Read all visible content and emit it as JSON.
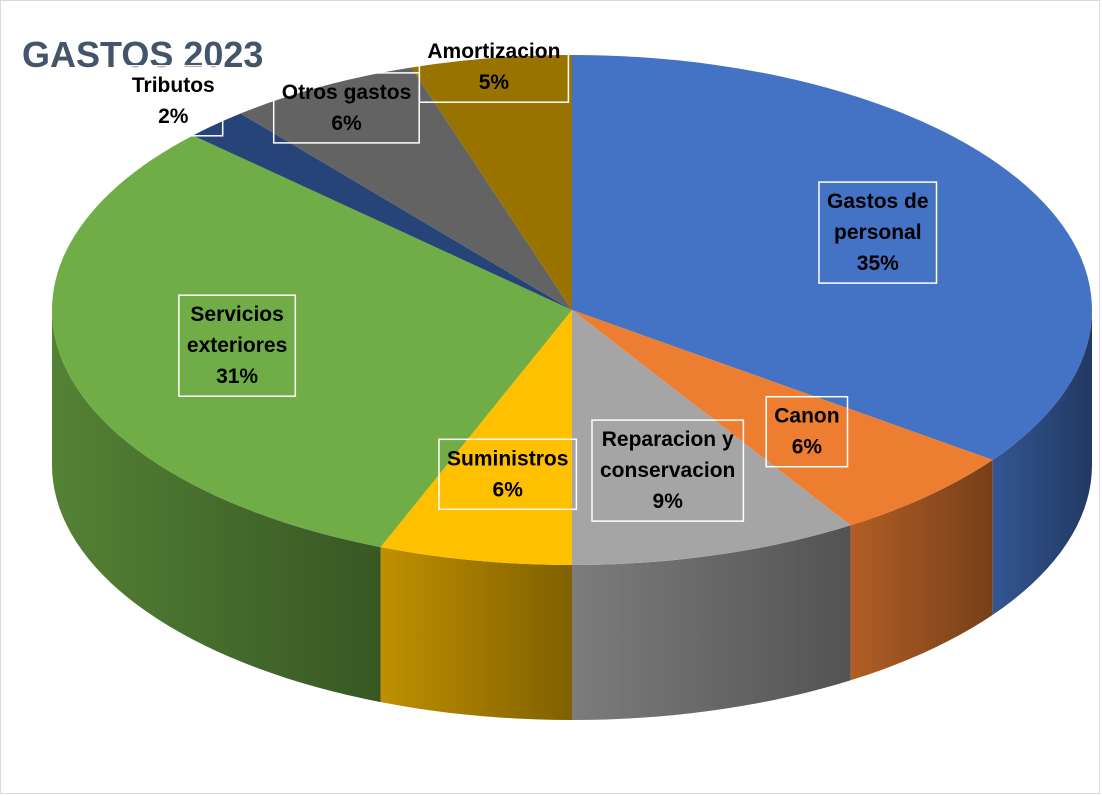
{
  "chart_data": {
    "type": "pie",
    "title": "GASTOS 2023",
    "slices": [
      {
        "name": "Gastos de personal",
        "value": 35,
        "label_lines": [
          "Gastos de",
          "personal",
          "35%"
        ],
        "color": "#4472c4"
      },
      {
        "name": "Canon",
        "value": 6,
        "label_lines": [
          "Canon",
          "6%"
        ],
        "color": "#ed7d31"
      },
      {
        "name": "Reparacion y conservacion",
        "value": 9,
        "label_lines": [
          "Reparacion y",
          "conservacion",
          "9%"
        ],
        "color": "#a5a5a5"
      },
      {
        "name": "Suministros",
        "value": 6,
        "label_lines": [
          "Suministros",
          "6%"
        ],
        "color": "#ffc000"
      },
      {
        "name": "Servicios exteriores",
        "value": 31,
        "label_lines": [
          "Servicios",
          "exteriores",
          "31%"
        ],
        "color": "#70ad47"
      },
      {
        "name": "Tributos",
        "value": 2,
        "label_lines": [
          "Tributos",
          "2%"
        ],
        "color": "#264478"
      },
      {
        "name": "Otros gastos",
        "value": 6,
        "label_lines": [
          "Otros gastos",
          "6%"
        ],
        "color": "#636363"
      },
      {
        "name": "Amortizacion",
        "value": 5,
        "label_lines": [
          "Amortizacion",
          "5%"
        ],
        "color": "#997300"
      }
    ],
    "legend": "none"
  }
}
